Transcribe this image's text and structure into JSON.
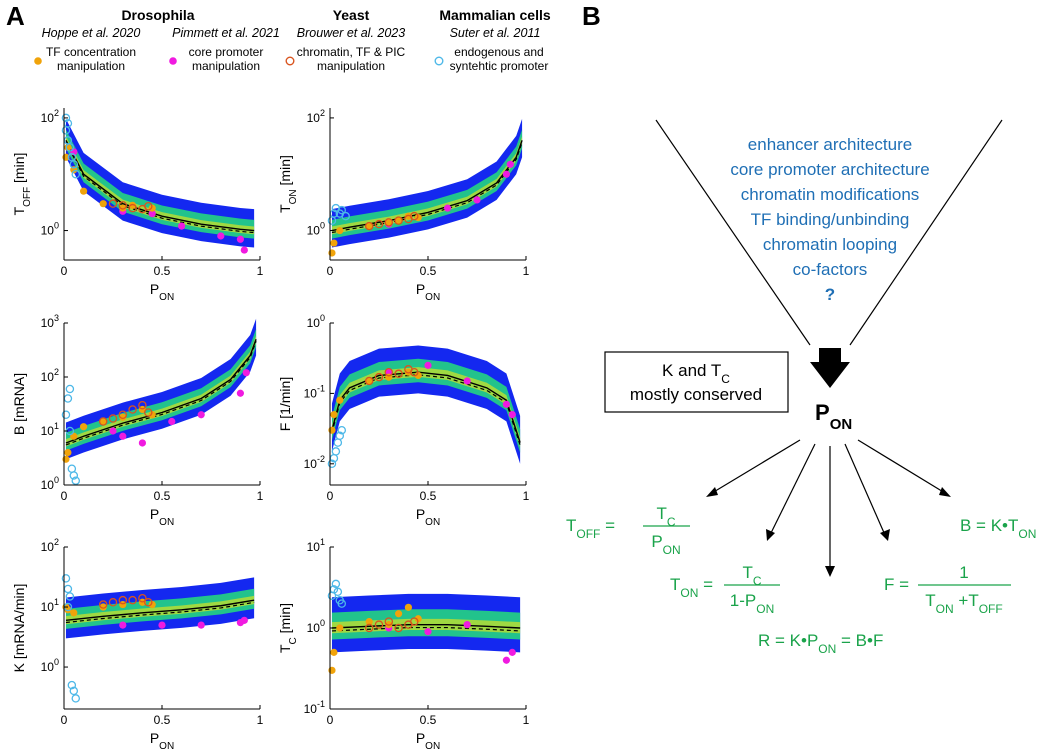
{
  "panels": {
    "a": "A",
    "b": "B"
  },
  "headers": {
    "drosophila": "Drosophila",
    "yeast": "Yeast",
    "mammalian": "Mammalian cells",
    "hoppe": "Hoppe et al. 2020",
    "pimmett": "Pimmett et al. 2021",
    "brouwer": "Brouwer et al. 2023",
    "suter": "Suter et al. 2011"
  },
  "legend": [
    {
      "name": "TF concentration manipulation",
      "line1": "TF concentration",
      "line2": "manipulation",
      "marker": "filled",
      "color": "#f0a30a"
    },
    {
      "name": "core promoter manipulation",
      "line1": "core promoter",
      "line2": "manipulation",
      "marker": "filled",
      "color": "#f01ae0"
    },
    {
      "name": "chromatin, TF & PIC manipulation",
      "line1": "chromatin, TF & PIC",
      "line2": "manipulation",
      "marker": "open",
      "color": "#d9541e"
    },
    {
      "name": "endogenous and syntehtic promoter",
      "line1": "endogenous and",
      "line2": "syntehtic promoter",
      "marker": "open",
      "color": "#4db8e8"
    }
  ],
  "colors": {
    "cloud_outer": "#1428f0",
    "cloud_inner": "#22c38c",
    "cloud_core": "#f0e020",
    "fit": "#000000"
  },
  "chart_data": [
    {
      "type": "scatter",
      "id": "toff",
      "ylabel_main": "T",
      "ylabel_sub": "OFF",
      "ylabel_unit": " [min]",
      "xlabel_main": "P",
      "xlabel_sub": "ON",
      "yscale": "log",
      "ylim": [
        0.3,
        150
      ],
      "xlim": [
        0,
        1
      ],
      "yticks": [
        {
          "base": "10",
          "exp": "2",
          "v": 100
        },
        {
          "base": "10",
          "exp": "0",
          "v": 1
        }
      ],
      "xticks": [
        "0",
        "0.5",
        "1"
      ],
      "fit": [
        [
          0.01,
          40
        ],
        [
          0.1,
          10
        ],
        [
          0.3,
          3
        ],
        [
          0.5,
          1.8
        ],
        [
          0.7,
          1.3
        ],
        [
          0.9,
          1.05
        ],
        [
          0.97,
          1.0
        ]
      ],
      "TF": [
        [
          0.01,
          20
        ],
        [
          0.02,
          30
        ],
        [
          0.05,
          12
        ],
        [
          0.1,
          5
        ],
        [
          0.2,
          3
        ],
        [
          0.3,
          2.5
        ],
        [
          0.35,
          2.8
        ],
        [
          0.45,
          2.5
        ]
      ],
      "core": [
        [
          0.05,
          25
        ],
        [
          0.3,
          2.2
        ],
        [
          0.45,
          2.0
        ],
        [
          0.6,
          1.2
        ],
        [
          0.8,
          0.8
        ],
        [
          0.9,
          0.7
        ],
        [
          0.92,
          0.45
        ]
      ],
      "chrom": [
        [
          0.25,
          3
        ],
        [
          0.3,
          2.8
        ],
        [
          0.35,
          2.5
        ],
        [
          0.4,
          2.4
        ],
        [
          0.43,
          2.7
        ]
      ],
      "endo": [
        [
          0.01,
          100
        ],
        [
          0.01,
          60
        ],
        [
          0.02,
          40
        ],
        [
          0.02,
          80
        ],
        [
          0.03,
          30
        ],
        [
          0.04,
          20
        ],
        [
          0.05,
          15
        ],
        [
          0.06,
          10
        ]
      ]
    },
    {
      "type": "scatter",
      "id": "ton",
      "ylabel_main": "T",
      "ylabel_sub": "ON",
      "ylabel_unit": " [min]",
      "xlabel_main": "P",
      "xlabel_sub": "ON",
      "yscale": "log",
      "ylim": [
        0.3,
        150
      ],
      "xlim": [
        0,
        1
      ],
      "yticks": [
        {
          "base": "10",
          "exp": "2",
          "v": 100
        },
        {
          "base": "10",
          "exp": "0",
          "v": 1
        }
      ],
      "xticks": [
        "0",
        "0.5",
        "1"
      ],
      "fit": [
        [
          0.01,
          1.0
        ],
        [
          0.1,
          1.15
        ],
        [
          0.3,
          1.5
        ],
        [
          0.5,
          2.1
        ],
        [
          0.7,
          3.4
        ],
        [
          0.85,
          7
        ],
        [
          0.95,
          20
        ],
        [
          0.98,
          40
        ]
      ],
      "TF": [
        [
          0.01,
          0.4
        ],
        [
          0.02,
          0.6
        ],
        [
          0.05,
          1.0
        ],
        [
          0.2,
          1.2
        ],
        [
          0.3,
          1.4
        ],
        [
          0.35,
          1.5
        ],
        [
          0.4,
          1.8
        ],
        [
          0.45,
          1.7
        ]
      ],
      "core": [
        [
          0.3,
          1.3
        ],
        [
          0.6,
          2.5
        ],
        [
          0.75,
          3.5
        ],
        [
          0.9,
          10
        ],
        [
          0.92,
          15
        ]
      ],
      "chrom": [
        [
          0.2,
          1.2
        ],
        [
          0.25,
          1.3
        ],
        [
          0.3,
          1.4
        ],
        [
          0.35,
          1.5
        ],
        [
          0.4,
          1.6
        ],
        [
          0.43,
          1.8
        ]
      ],
      "endo": [
        [
          0.01,
          1.5
        ],
        [
          0.02,
          2
        ],
        [
          0.03,
          2.5
        ],
        [
          0.05,
          2
        ],
        [
          0.06,
          2.3
        ],
        [
          0.08,
          1.8
        ]
      ]
    },
    {
      "type": "scatter",
      "id": "burst",
      "ylabel_main": "B [mRNA]",
      "ylabel_sub": "",
      "ylabel_unit": "",
      "xlabel_main": "P",
      "xlabel_sub": "ON",
      "yscale": "log",
      "ylim": [
        1,
        1000
      ],
      "xlim": [
        0,
        1
      ],
      "yticks": [
        {
          "base": "10",
          "exp": "3",
          "v": 1000
        },
        {
          "base": "10",
          "exp": "2",
          "v": 100
        },
        {
          "base": "10",
          "exp": "1",
          "v": 10
        },
        {
          "base": "10",
          "exp": "0",
          "v": 1
        }
      ],
      "xticks": [
        "0",
        "0.5",
        "1"
      ],
      "fit": [
        [
          0.01,
          6
        ],
        [
          0.1,
          8
        ],
        [
          0.3,
          14
        ],
        [
          0.5,
          22
        ],
        [
          0.7,
          40
        ],
        [
          0.85,
          90
        ],
        [
          0.95,
          250
        ],
        [
          0.98,
          500
        ]
      ],
      "TF": [
        [
          0.01,
          3
        ],
        [
          0.02,
          4
        ],
        [
          0.05,
          8
        ],
        [
          0.1,
          12
        ],
        [
          0.2,
          15
        ],
        [
          0.3,
          18
        ],
        [
          0.4,
          25
        ],
        [
          0.45,
          20
        ]
      ],
      "core": [
        [
          0.25,
          10
        ],
        [
          0.3,
          8
        ],
        [
          0.4,
          6
        ],
        [
          0.55,
          15
        ],
        [
          0.7,
          20
        ],
        [
          0.9,
          50
        ],
        [
          0.93,
          120
        ]
      ],
      "chrom": [
        [
          0.2,
          15
        ],
        [
          0.25,
          17
        ],
        [
          0.3,
          20
        ],
        [
          0.35,
          25
        ],
        [
          0.4,
          30
        ],
        [
          0.43,
          22
        ]
      ],
      "endo": [
        [
          0.01,
          20
        ],
        [
          0.02,
          40
        ],
        [
          0.03,
          10
        ],
        [
          0.04,
          2
        ],
        [
          0.05,
          1.5
        ],
        [
          0.06,
          1.2
        ],
        [
          0.03,
          60
        ]
      ]
    },
    {
      "type": "scatter",
      "id": "freq",
      "ylabel_main": "F [1/min]",
      "ylabel_sub": "",
      "ylabel_unit": "",
      "xlabel_main": "P",
      "xlabel_sub": "ON",
      "yscale": "log",
      "ylim": [
        0.005,
        1
      ],
      "xlim": [
        0,
        1
      ],
      "yticks": [
        {
          "base": "10",
          "exp": "0",
          "v": 1
        },
        {
          "base": "10",
          "exp": "-1",
          "v": 0.1
        },
        {
          "base": "10",
          "exp": "-2",
          "v": 0.01
        }
      ],
      "xticks": [
        "0",
        "0.5",
        "1"
      ],
      "fit": [
        [
          0.01,
          0.03
        ],
        [
          0.05,
          0.08
        ],
        [
          0.1,
          0.12
        ],
        [
          0.25,
          0.18
        ],
        [
          0.45,
          0.2
        ],
        [
          0.6,
          0.18
        ],
        [
          0.8,
          0.12
        ],
        [
          0.9,
          0.08
        ],
        [
          0.97,
          0.02
        ]
      ],
      "TF": [
        [
          0.01,
          0.03
        ],
        [
          0.02,
          0.05
        ],
        [
          0.05,
          0.08
        ],
        [
          0.2,
          0.15
        ],
        [
          0.3,
          0.17
        ],
        [
          0.4,
          0.2
        ],
        [
          0.45,
          0.18
        ]
      ],
      "core": [
        [
          0.3,
          0.2
        ],
        [
          0.5,
          0.25
        ],
        [
          0.7,
          0.15
        ],
        [
          0.9,
          0.07
        ],
        [
          0.93,
          0.05
        ]
      ],
      "chrom": [
        [
          0.2,
          0.15
        ],
        [
          0.25,
          0.17
        ],
        [
          0.3,
          0.2
        ],
        [
          0.35,
          0.19
        ],
        [
          0.4,
          0.22
        ],
        [
          0.43,
          0.2
        ]
      ],
      "endo": [
        [
          0.01,
          0.01
        ],
        [
          0.02,
          0.012
        ],
        [
          0.03,
          0.015
        ],
        [
          0.04,
          0.02
        ],
        [
          0.05,
          0.025
        ],
        [
          0.06,
          0.03
        ]
      ]
    },
    {
      "type": "scatter",
      "id": "kinit",
      "ylabel_main": "K [mRNA/min]",
      "ylabel_sub": "",
      "ylabel_unit": "",
      "xlabel_main": "P",
      "xlabel_sub": "ON",
      "yscale": "log",
      "ylim": [
        0.2,
        100
      ],
      "xlim": [
        0,
        1
      ],
      "yticks": [
        {
          "base": "10",
          "exp": "2",
          "v": 100
        },
        {
          "base": "10",
          "exp": "1",
          "v": 10
        },
        {
          "base": "10",
          "exp": "0",
          "v": 1
        }
      ],
      "xticks": [
        "0",
        "0.5",
        "1"
      ],
      "fit": [
        [
          0.01,
          6
        ],
        [
          0.2,
          7
        ],
        [
          0.4,
          8
        ],
        [
          0.6,
          9
        ],
        [
          0.8,
          10.5
        ],
        [
          0.97,
          13
        ]
      ],
      "TF": [
        [
          0.01,
          10
        ],
        [
          0.02,
          9
        ],
        [
          0.05,
          8
        ],
        [
          0.2,
          10
        ],
        [
          0.3,
          11
        ],
        [
          0.4,
          12
        ],
        [
          0.45,
          11
        ]
      ],
      "core": [
        [
          0.3,
          5
        ],
        [
          0.5,
          5
        ],
        [
          0.7,
          5
        ],
        [
          0.9,
          5.5
        ],
        [
          0.92,
          6
        ]
      ],
      "chrom": [
        [
          0.2,
          11
        ],
        [
          0.25,
          12
        ],
        [
          0.3,
          13
        ],
        [
          0.35,
          13
        ],
        [
          0.4,
          14
        ],
        [
          0.43,
          12
        ]
      ],
      "endo": [
        [
          0.01,
          30
        ],
        [
          0.02,
          20
        ],
        [
          0.03,
          15
        ],
        [
          0.04,
          0.5
        ],
        [
          0.05,
          0.4
        ],
        [
          0.06,
          0.3
        ],
        [
          0.02,
          10
        ]
      ]
    },
    {
      "type": "scatter",
      "id": "tc",
      "ylabel_main": "T",
      "ylabel_sub": "C",
      "ylabel_unit": " [min]",
      "xlabel_main": "P",
      "xlabel_sub": "ON",
      "yscale": "log",
      "ylim": [
        0.1,
        10
      ],
      "xlim": [
        0,
        1
      ],
      "yticks": [
        {
          "base": "10",
          "exp": "1",
          "v": 10
        },
        {
          "base": "10",
          "exp": "0",
          "v": 1
        },
        {
          "base": "10",
          "exp": "-1",
          "v": 0.1
        }
      ],
      "xticks": [
        "0",
        "0.5",
        "1"
      ],
      "fit": [
        [
          0.01,
          1.0
        ],
        [
          0.2,
          1.05
        ],
        [
          0.4,
          1.1
        ],
        [
          0.6,
          1.1
        ],
        [
          0.8,
          1.05
        ],
        [
          0.97,
          1.0
        ]
      ],
      "TF": [
        [
          0.01,
          0.3
        ],
        [
          0.02,
          0.5
        ],
        [
          0.05,
          1.0
        ],
        [
          0.2,
          1.2
        ],
        [
          0.3,
          1.1
        ],
        [
          0.35,
          1.5
        ],
        [
          0.4,
          1.8
        ],
        [
          0.45,
          1.3
        ]
      ],
      "core": [
        [
          0.3,
          1.0
        ],
        [
          0.5,
          0.9
        ],
        [
          0.7,
          1.1
        ],
        [
          0.9,
          0.4
        ],
        [
          0.93,
          0.5
        ]
      ],
      "chrom": [
        [
          0.2,
          1.0
        ],
        [
          0.25,
          1.1
        ],
        [
          0.3,
          1.2
        ],
        [
          0.35,
          1.0
        ],
        [
          0.4,
          1.1
        ],
        [
          0.43,
          1.2
        ]
      ],
      "endo": [
        [
          0.01,
          2.5
        ],
        [
          0.02,
          3
        ],
        [
          0.03,
          3.5
        ],
        [
          0.04,
          2.8
        ],
        [
          0.05,
          2.2
        ],
        [
          0.06,
          2
        ]
      ]
    }
  ],
  "diagram": {
    "drivers": [
      "enhancer architecture",
      "core promoter architecture",
      "chromatin modifications",
      "TF binding/unbinding",
      "chromatin looping",
      "co-factors",
      "?"
    ],
    "box_line1_main": "K and T",
    "box_line1_sub": "C",
    "box_line2": "mostly conserved",
    "pon_main": "P",
    "pon_sub": "ON",
    "eq_toff_lhs": "T",
    "eq_toff_lhs_sub": "OFF",
    "eq_toff_num": "T",
    "eq_toff_num_sub": "C",
    "eq_toff_den": "P",
    "eq_toff_den_sub": "ON",
    "eq_ton_lhs": "T",
    "eq_ton_lhs_sub": "ON",
    "eq_ton_num": "T",
    "eq_ton_num_sub": "C",
    "eq_ton_den": "1-P",
    "eq_ton_den_sub": "ON",
    "eq_r": "R = K•P",
    "eq_r_sub": "ON",
    "eq_r_rest": " = B•F",
    "eq_f_lhs": "F =",
    "eq_f_num": "1",
    "eq_f_den1": "T",
    "eq_f_den1_sub": "ON",
    "eq_f_den2": " +T",
    "eq_f_den2_sub": "OFF",
    "eq_b": "B = K•T",
    "eq_b_sub": "ON"
  }
}
